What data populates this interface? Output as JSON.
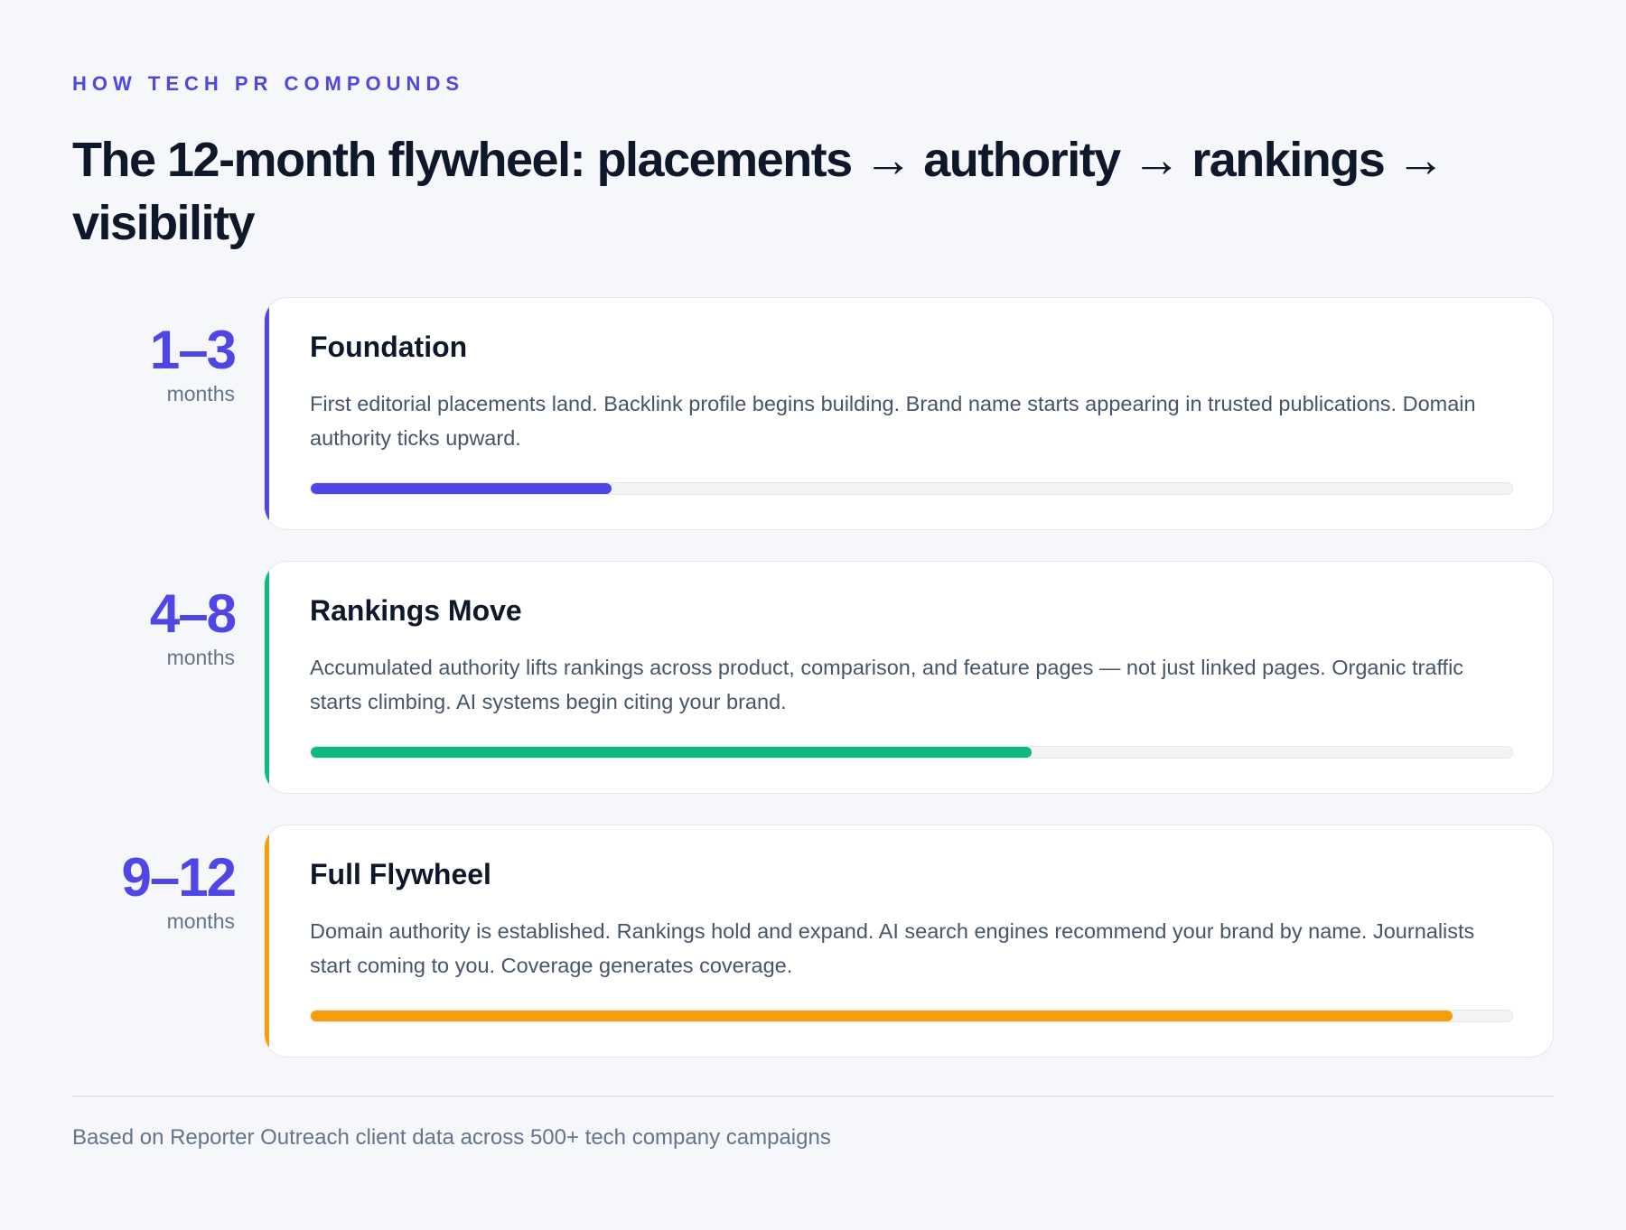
{
  "header": {
    "eyebrow": "HOW TECH PR COMPOUNDS",
    "title": "The 12-month flywheel: placements → authority → rankings → visibility"
  },
  "phases": [
    {
      "range": "1–3",
      "unit": "months",
      "title": "Foundation",
      "description": "First editorial placements land. Backlink profile begins building. Brand name starts appearing in trusted publications. Domain authority ticks upward.",
      "progress": 0.25,
      "color": "#4f46e5"
    },
    {
      "range": "4–8",
      "unit": "months",
      "title": "Rankings Move",
      "description": "Accumulated authority lifts rankings across product, comparison, and feature pages — not just linked pages. Organic traffic starts climbing. AI systems begin citing your brand.",
      "progress": 0.6,
      "color": "#10b981"
    },
    {
      "range": "9–12",
      "unit": "months",
      "title": "Full Flywheel",
      "description": "Domain authority is established. Rankings hold and expand. AI search engines recommend your brand by name. Journalists start coming to you. Coverage generates coverage.",
      "progress": 0.95,
      "color": "#f59e0b"
    }
  ],
  "footer": {
    "note": "Based on Reporter Outreach client data across 500+ tech company campaigns"
  }
}
